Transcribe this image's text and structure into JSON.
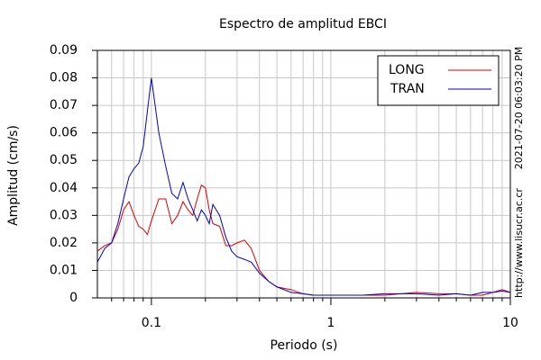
{
  "chart_data": {
    "type": "line",
    "title": "Espectro de amplitud EBCI",
    "x_label": "Periodo (s)",
    "y_label": "Amplitud (cm/s)",
    "annotations": [
      "2021-07-20 06:03:20 PM",
      "http://www.lisucr.ac.cr"
    ],
    "x": [
      0.05,
      0.055,
      0.06,
      0.065,
      0.07,
      0.075,
      0.08,
      0.085,
      0.09,
      0.095,
      0.1,
      0.11,
      0.12,
      0.13,
      0.14,
      0.15,
      0.16,
      0.17,
      0.18,
      0.19,
      0.2,
      0.21,
      0.22,
      0.24,
      0.26,
      0.28,
      0.3,
      0.33,
      0.36,
      0.4,
      0.45,
      0.5,
      0.6,
      0.7,
      0.8,
      1,
      1.5,
      2,
      3,
      4,
      5,
      6,
      7,
      8,
      9,
      10
    ],
    "series": [
      {
        "name": "LONG",
        "color": "#dd0000",
        "values": [
          0.017,
          0.019,
          0.02,
          0.025,
          0.032,
          0.035,
          0.03,
          0.026,
          0.025,
          0.023,
          0.028,
          0.036,
          0.036,
          0.027,
          0.03,
          0.035,
          0.032,
          0.03,
          0.036,
          0.041,
          0.04,
          0.032,
          0.027,
          0.026,
          0.019,
          0.019,
          0.02,
          0.021,
          0.018,
          0.01,
          0.006,
          0.004,
          0.003,
          0.0015,
          0.001,
          0.001,
          0.001,
          0.001,
          0.002,
          0.0015,
          0.0015,
          0.001,
          0.001,
          0.002,
          0.003,
          0.002
        ]
      },
      {
        "name": "TRAN",
        "color": "#0000cc",
        "values": [
          0.013,
          0.018,
          0.02,
          0.027,
          0.036,
          0.044,
          0.047,
          0.049,
          0.055,
          0.068,
          0.08,
          0.06,
          0.048,
          0.038,
          0.036,
          0.042,
          0.036,
          0.032,
          0.028,
          0.032,
          0.03,
          0.027,
          0.034,
          0.03,
          0.022,
          0.017,
          0.015,
          0.014,
          0.013,
          0.009,
          0.006,
          0.004,
          0.002,
          0.0015,
          0.001,
          0.001,
          0.001,
          0.0015,
          0.0015,
          0.001,
          0.0015,
          0.001,
          0.002,
          0.002,
          0.0025,
          0.002
        ]
      }
    ],
    "xscale": "log",
    "xlim": [
      0.05,
      10
    ],
    "xticks": [
      0.1,
      1,
      10
    ],
    "xminorticks": [
      0.06,
      0.07,
      0.08,
      0.09,
      0.2,
      0.3,
      0.4,
      0.5,
      0.6,
      0.7,
      0.8,
      0.9,
      2,
      3,
      4,
      5,
      6,
      7,
      8,
      9
    ],
    "ylim": [
      0,
      0.09
    ],
    "yticks": [
      0,
      0.01,
      0.02,
      0.03,
      0.04,
      0.05,
      0.06,
      0.07,
      0.08,
      0.09
    ],
    "grid": true,
    "legend": "upper right"
  }
}
